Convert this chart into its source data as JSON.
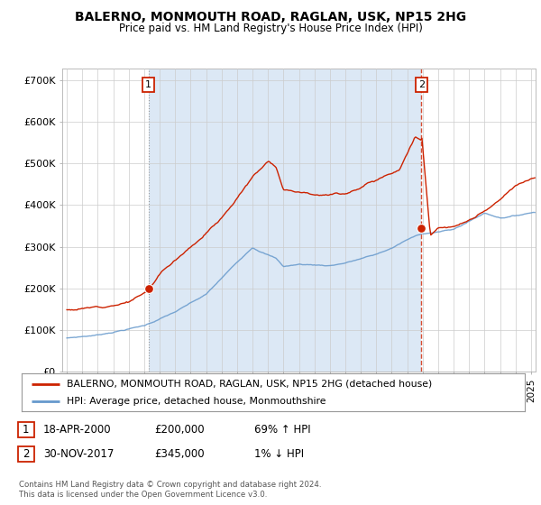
{
  "title": "BALERNO, MONMOUTH ROAD, RAGLAN, USK, NP15 2HG",
  "subtitle": "Price paid vs. HM Land Registry's House Price Index (HPI)",
  "background_color": "#ffffff",
  "plot_bg_color": "#ffffff",
  "plot_shade_color": "#dce8f5",
  "grid_color": "#cccccc",
  "red_color": "#cc2200",
  "blue_color": "#6699cc",
  "ylim": [
    0,
    730000
  ],
  "yticks": [
    0,
    100000,
    200000,
    300000,
    400000,
    500000,
    600000,
    700000
  ],
  "ytick_labels": [
    "£0",
    "£100K",
    "£200K",
    "£300K",
    "£400K",
    "£500K",
    "£600K",
    "£700K"
  ],
  "xlim_start": 1994.7,
  "xlim_end": 2025.3,
  "sale1_x": 2000.28,
  "sale1_price": 200000,
  "sale2_x": 2017.92,
  "sale2_price": 345000,
  "legend_line1": "BALERNO, MONMOUTH ROAD, RAGLAN, USK, NP15 2HG (detached house)",
  "legend_line2": "HPI: Average price, detached house, Monmouthshire",
  "table_row1": [
    "1",
    "18-APR-2000",
    "£200,000",
    "69% ↑ HPI"
  ],
  "table_row2": [
    "2",
    "30-NOV-2017",
    "£345,000",
    "1% ↓ HPI"
  ],
  "footer": "Contains HM Land Registry data © Crown copyright and database right 2024.\nThis data is licensed under the Open Government Licence v3.0."
}
